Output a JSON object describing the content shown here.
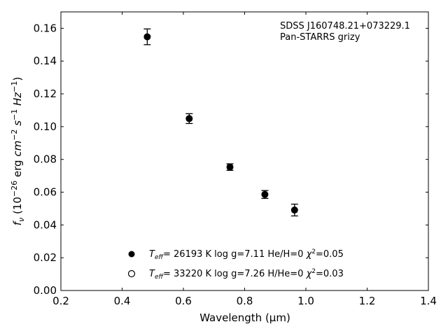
{
  "chart_data": {
    "type": "scatter",
    "xlabel": "Wavelength (μm)",
    "ylabel_parts": {
      "f": "f",
      "nu": "ν",
      "open": " (10",
      "exp1": "−26",
      "erg": " erg ",
      "cm": "cm",
      "exp2": "−2",
      "s": " s",
      "exp3": "−1",
      "hz": " Hz",
      "exp4": "−1",
      "close": ")"
    },
    "xlim": [
      0.2,
      1.4
    ],
    "ylim": [
      0.0,
      0.17
    ],
    "xticks": [
      0.2,
      0.4,
      0.6,
      0.8,
      1.0,
      1.2,
      1.4
    ],
    "yticks": [
      0.0,
      0.02,
      0.04,
      0.06,
      0.08,
      0.1,
      0.12,
      0.14,
      0.16
    ],
    "xtick_labels": [
      "0.2",
      "0.4",
      "0.6",
      "0.8",
      "1.0",
      "1.2",
      "1.4"
    ],
    "ytick_labels": [
      "0.00",
      "0.02",
      "0.04",
      "0.06",
      "0.08",
      "0.10",
      "0.12",
      "0.14",
      "0.16"
    ],
    "annotations": [
      "SDSS J160748.21+073229.1",
      "Pan-STARRS grizy"
    ],
    "series": [
      {
        "marker": "filled-circle",
        "color": "#000000",
        "x": [
          0.482,
          0.619,
          0.752,
          0.866,
          0.963
        ],
        "y": [
          0.1548,
          0.1049,
          0.0753,
          0.0586,
          0.0491
        ],
        "yerr": [
          0.0048,
          0.003,
          0.002,
          0.0024,
          0.0036
        ]
      }
    ],
    "legend": {
      "placement": "lower-center",
      "entries": [
        {
          "marker": "filled-circle",
          "T": "T",
          "sub": "eff",
          "rest": "= 26193 K  log g=7.11  He/H=0  ",
          "chi": "χ",
          "sup": "2",
          "chi_rest": "=0.05"
        },
        {
          "marker": "open-circle",
          "T": "T",
          "sub": "eff",
          "rest": "= 33220 K  log g=7.26  H/He=0  ",
          "chi": "χ",
          "sup": "2",
          "chi_rest": "=0.03"
        }
      ]
    }
  }
}
